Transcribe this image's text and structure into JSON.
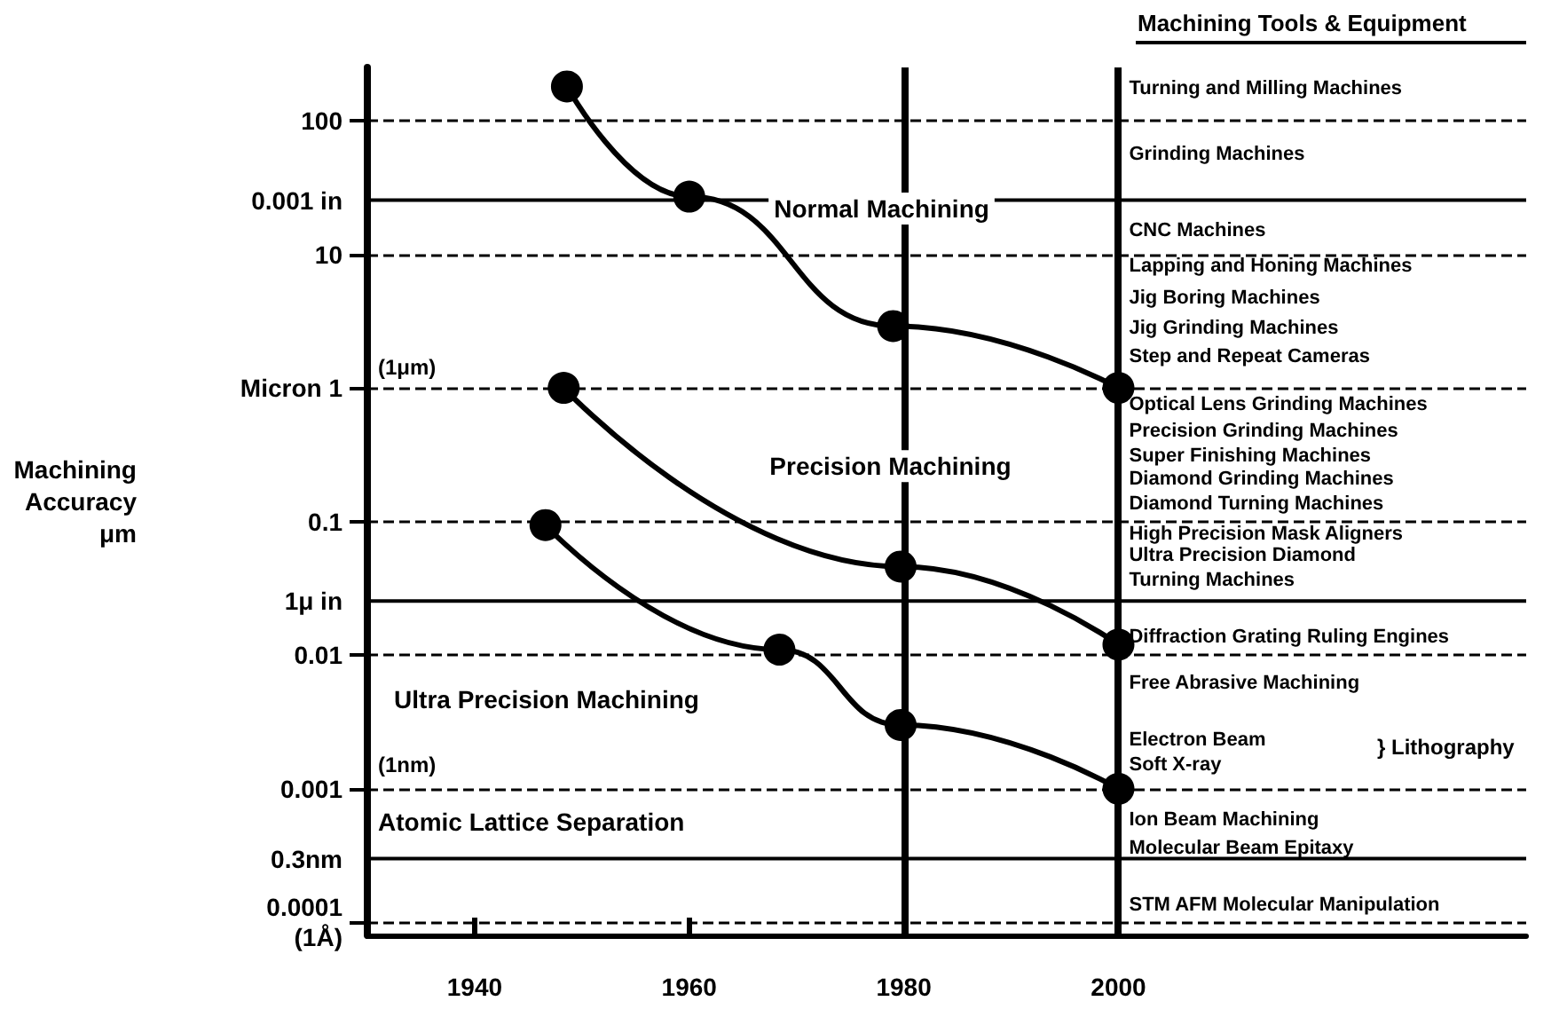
{
  "chart_data": {
    "type": "line",
    "ylabel": "Machining\nAccuracy\nμm",
    "series": [
      {
        "name": "Normal Machining",
        "color": "#000000",
        "x": [
          1948.6,
          1960,
          1979,
          2000
        ],
        "values": [
          180,
          27,
          2.9,
          1
        ]
      },
      {
        "name": "Precision Machining",
        "color": "#000000",
        "x": [
          1948.3,
          1979.7,
          2000
        ],
        "values": [
          1,
          0.046,
          0.012
        ]
      },
      {
        "name": "Ultra Precision Machining",
        "color": "#000000",
        "x": [
          1946.6,
          1968.4,
          1979.7,
          2000
        ],
        "values": [
          0.094,
          0.011,
          0.003,
          0.001
        ]
      }
    ],
    "xlim": [
      1930,
      2038
    ],
    "xticks": [
      1940,
      1960,
      1980,
      2000
    ],
    "ylim": [
      8e-05,
      250
    ],
    "yticks": [
      100,
      10,
      {
        "value": 1,
        "label": "Micron 1"
      },
      0.1,
      0.01,
      0.001,
      {
        "value": 0.0001,
        "label": "0.0001\n(1Å)"
      }
    ],
    "log": "y",
    "grid": "y",
    "marker": "circle",
    "line_style": "solid",
    "ref_lines": [
      {
        "axis": "x",
        "value": 1980,
        "label": null
      },
      {
        "axis": "x",
        "value": 2000,
        "label": null
      },
      {
        "axis": "y",
        "value": 25.4,
        "label": "0.001 in"
      },
      {
        "axis": "y",
        "value": 0.0254,
        "label": "1μ in"
      },
      {
        "axis": "y",
        "value": 0.0003,
        "label": "0.3nm"
      }
    ],
    "annotations": [
      "Machining Tools & Equipment",
      "Atomic Lattice Separation",
      "(1μm)",
      "(1nm)",
      "} Lithography",
      "Turning and Milling Machines",
      "Grinding Machines",
      "CNC Machines",
      "Lapping and Honing Machines",
      "Jig Boring Machines",
      "Jig Grinding Machines",
      "Step and Repeat Cameras",
      "Optical Lens Grinding Machines",
      "Precision Grinding Machines",
      "Super Finishing Machines",
      "Diamond Grinding Machines",
      "Diamond Turning Machines",
      "High Precision Mask Aligners",
      "Ultra Precision Diamond\nTurning Machines",
      "Diffraction Grating Ruling Engines",
      "Free Abrasive Machining",
      "Electron Beam\nSoft X-ray",
      "Ion Beam Machining",
      "Molecular Beam Epitaxy",
      "STM AFM Molecular Manipulation"
    ]
  }
}
